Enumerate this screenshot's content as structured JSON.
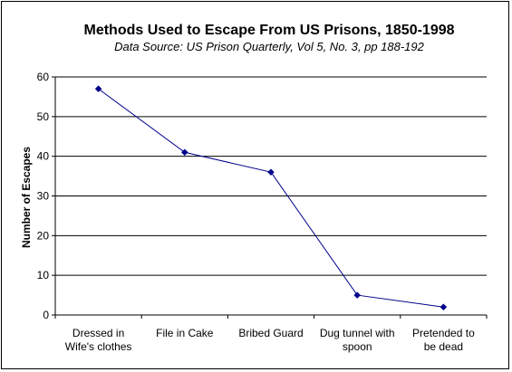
{
  "chart_data": {
    "type": "line",
    "title": "Methods Used to Escape From US Prisons, 1850-1998",
    "subtitle": "Data Source: US Prison Quarterly, Vol 5, No. 3, pp 188-192",
    "xlabel": "",
    "ylabel": "Number of Escapes",
    "categories": [
      [
        "Dressed in",
        "Wife's clothes"
      ],
      [
        "File in Cake"
      ],
      [
        "Bribed Guard"
      ],
      [
        "Dug tunnel with",
        "spoon"
      ],
      [
        "Pretended to",
        "be dead"
      ]
    ],
    "values": [
      57,
      41,
      36,
      5,
      2
    ],
    "ylim": [
      0,
      60
    ],
    "yticks": [
      0,
      10,
      20,
      30,
      40,
      50,
      60
    ],
    "grid": true,
    "legend": "none",
    "colors": {
      "line": "#00008B",
      "marker": "#00008B",
      "grid": "#000000"
    }
  }
}
